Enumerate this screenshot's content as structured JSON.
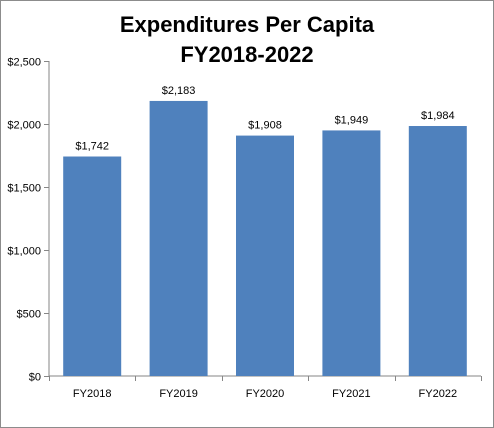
{
  "chart_data": {
    "type": "bar",
    "title_lines": [
      "Expenditures Per Capita",
      "FY2018-2022"
    ],
    "categories": [
      "FY2018",
      "FY2019",
      "FY2020",
      "FY2021",
      "FY2022"
    ],
    "values": [
      1742,
      2183,
      1908,
      1949,
      1984
    ],
    "data_labels": [
      "$1,742",
      "$2,183",
      "$1,908",
      "$1,949",
      "$1,984"
    ],
    "y_ticks": [
      0,
      500,
      1000,
      1500,
      2000,
      2500
    ],
    "y_tick_labels": [
      "$0",
      "$500",
      "$1,000",
      "$1,500",
      "$2,000",
      "$2,500"
    ],
    "ylim": [
      0,
      2500
    ],
    "xlabel": "",
    "ylabel": "",
    "grid": false,
    "legend": "none",
    "bar_color": "#4f81bd",
    "axis_color": "#868686"
  }
}
